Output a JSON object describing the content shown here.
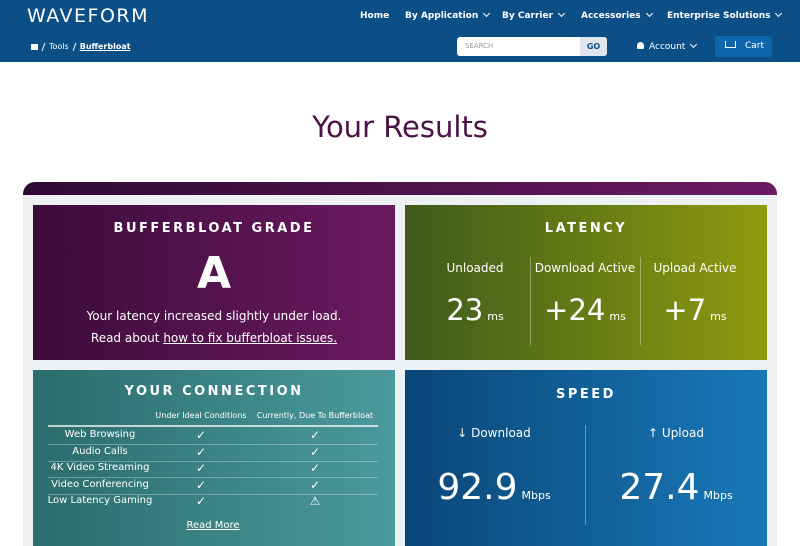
{
  "nav": {
    "logo": "WAVEFORM",
    "links": [
      "Home",
      "By Application",
      "By Carrier",
      "Accessories",
      "Enterprise Solutions"
    ]
  },
  "breadcrumb": [
    "Tools",
    "Bufferbloat"
  ],
  "search": {
    "placeholder": "SEARCH",
    "button": "GO"
  },
  "account": "Account",
  "cart": "Cart",
  "heading": "Your Results",
  "grade": {
    "title": "BUFFERBLOAT GRADE",
    "value": "A",
    "text": "Your latency increased slightly under load.",
    "read_prefix": "Read about",
    "link": "how to fix bufferbloat issues."
  },
  "latency": {
    "title": "LATENCY",
    "columns": [
      {
        "label": "Unloaded",
        "value": "23",
        "unit": "ms"
      },
      {
        "label": "Download Active",
        "value": "+24",
        "unit": "ms"
      },
      {
        "label": "Upload Active",
        "value": "+7",
        "unit": "ms"
      }
    ]
  },
  "connection": {
    "title": "YOUR CONNECTION",
    "headers": [
      "Under Ideal Conditions",
      "Currently, Due To Bufferbloat"
    ],
    "rows": [
      {
        "name": "Web Browsing",
        "ideal": "✓",
        "current": "✓"
      },
      {
        "name": "Audio Calls",
        "ideal": "✓",
        "current": "✓"
      },
      {
        "name": "4K Video Streaming",
        "ideal": "✓",
        "current": "✓"
      },
      {
        "name": "Video Conferencing",
        "ideal": "✓",
        "current": "✓"
      },
      {
        "name": "Low Latency Gaming",
        "ideal": "✓",
        "current": "⚠"
      }
    ],
    "read_more": "Read More"
  },
  "speed": {
    "title": "SPEED",
    "columns": [
      {
        "label": "↓ Download",
        "value": "92.9",
        "unit": "Mbps"
      },
      {
        "label": "↑ Upload",
        "value": "27.4",
        "unit": "Mbps"
      }
    ]
  }
}
